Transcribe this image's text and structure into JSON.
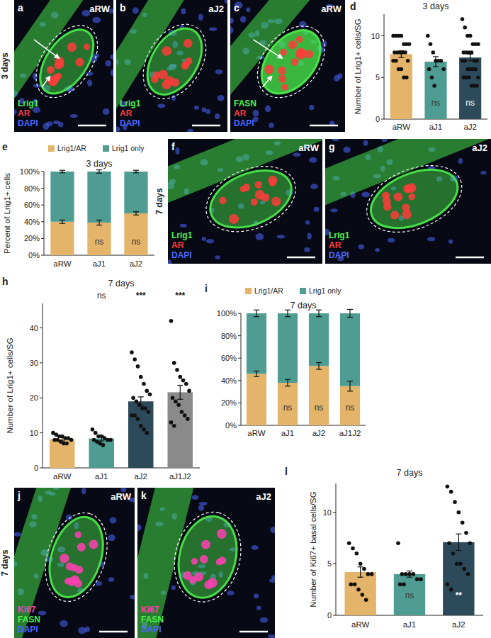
{
  "image_panels": [
    {
      "panel_label": "a",
      "condition": "aRW",
      "row_label": "3 days",
      "stains": [
        {
          "text": "Lrig1",
          "color": "#4cf04c"
        },
        {
          "text": "AR",
          "color": "#ff3b3b"
        },
        {
          "text": "DAPI",
          "color": "#4a66ff"
        }
      ]
    },
    {
      "panel_label": "b",
      "condition": "aJ2",
      "stains": [
        {
          "text": "Lrig1",
          "color": "#4cf04c"
        },
        {
          "text": "AR",
          "color": "#ff3b3b"
        },
        {
          "text": "DAPI",
          "color": "#4a66ff"
        }
      ]
    },
    {
      "panel_label": "c",
      "condition": "aRW",
      "stains": [
        {
          "text": "FASN",
          "color": "#4cf04c"
        },
        {
          "text": "AR",
          "color": "#ff3b3b"
        },
        {
          "text": "DAPI",
          "color": "#4a66ff"
        }
      ]
    },
    {
      "panel_label": "f",
      "condition": "aRW",
      "row_label": "7 days",
      "stains": [
        {
          "text": "Lrig1",
          "color": "#4cf04c"
        },
        {
          "text": "AR",
          "color": "#ff3b3b"
        },
        {
          "text": "DAPI",
          "color": "#4a66ff"
        }
      ]
    },
    {
      "panel_label": "g",
      "condition": "aJ2",
      "stains": [
        {
          "text": "Lrig1",
          "color": "#4cf04c"
        },
        {
          "text": "AR",
          "color": "#ff3b3b"
        },
        {
          "text": "DAPI",
          "color": "#4a66ff"
        }
      ]
    },
    {
      "panel_label": "j",
      "condition": "aRW",
      "row_label": "7 days",
      "stains": [
        {
          "text": "Ki67",
          "color": "#ff3fb4"
        },
        {
          "text": "FASN",
          "color": "#4cf04c"
        },
        {
          "text": "DAPI",
          "color": "#4a66ff"
        }
      ]
    },
    {
      "panel_label": "k",
      "condition": "aJ2",
      "stains": [
        {
          "text": "Ki67",
          "color": "#ff3fb4"
        },
        {
          "text": "FASN",
          "color": "#4cf04c"
        },
        {
          "text": "DAPI",
          "color": "#4a66ff"
        }
      ]
    }
  ],
  "chart_data": [
    {
      "type": "bar",
      "panel_label": "d",
      "title": "3 days",
      "ylabel": "Number of Lrig1+ cells/SG",
      "categories": [
        "aRW",
        "aJ1",
        "aJ2"
      ],
      "values": [
        7.8,
        6.9,
        7.4
      ],
      "errors": [
        0.4,
        0.6,
        0.4
      ],
      "colors": [
        "#e3b469",
        "#4f9d92",
        "#2c4a5a"
      ],
      "points": [
        [
          10,
          10,
          10,
          10,
          9,
          9,
          9,
          8,
          8,
          8,
          8,
          8,
          7,
          7,
          7,
          6,
          6,
          5,
          5
        ],
        [
          10,
          9,
          8,
          7,
          7,
          7,
          6,
          6,
          5,
          4
        ],
        [
          12,
          11,
          10,
          10,
          9,
          9,
          9,
          8,
          8,
          8,
          8,
          7,
          7,
          7,
          7,
          6,
          6,
          6,
          6,
          5,
          5,
          5,
          5,
          4,
          4,
          4
        ]
      ],
      "annotations": [
        null,
        "ns",
        "ns"
      ],
      "ylim": [
        0,
        12.6
      ],
      "yticks": [
        0,
        5,
        10
      ],
      "grid": false
    },
    {
      "type": "bar",
      "stacked": true,
      "panel_label": "e",
      "title": "3 days",
      "ylabel": "Percent of Lrig1+ cells",
      "categories": [
        "aRW",
        "aJ1",
        "aJ2"
      ],
      "series": [
        {
          "name": "Lrig1/AR",
          "color": "#e3b469",
          "values": [
            40,
            39,
            50
          ],
          "errors": [
            2,
            3,
            2
          ]
        },
        {
          "name": "Lrig1 only",
          "color": "#4f9d92",
          "values": [
            60,
            61,
            50
          ],
          "errors": [
            1.5,
            2,
            1.5
          ]
        }
      ],
      "annotations": [
        null,
        "ns",
        "ns"
      ],
      "legend": "top",
      "ylim": [
        0,
        100
      ],
      "yticks": [
        {
          "value": 0,
          "label": "0%"
        },
        {
          "value": 20,
          "label": "20%"
        },
        {
          "value": 40,
          "label": "40%"
        },
        {
          "value": 60,
          "label": "60%"
        },
        {
          "value": 80,
          "label": "80%"
        },
        {
          "value": 100,
          "label": "100%"
        }
      ],
      "grid": false
    },
    {
      "type": "bar",
      "panel_label": "h",
      "title": "7 days",
      "ylabel": "Number of Lrig1+ cells/SG",
      "categories": [
        "aRW",
        "aJ1",
        "aJ2",
        "aJ1J2"
      ],
      "values": [
        8.2,
        8.4,
        19.0,
        21.6
      ],
      "errors": [
        0.5,
        0.7,
        1.3,
        2.0
      ],
      "colors": [
        "#e3b469",
        "#4f9d92",
        "#2c4a5a",
        "#8a8a8a"
      ],
      "points": [
        [
          10,
          9.5,
          9,
          9,
          8.5,
          8.5,
          8,
          8,
          8,
          7.5,
          7,
          7
        ],
        [
          11,
          10,
          9,
          9,
          8.5,
          8,
          8,
          8,
          7.5,
          7,
          6.5
        ],
        [
          33,
          31,
          29,
          26,
          24,
          22,
          21,
          20,
          19,
          18,
          17,
          17,
          16,
          15,
          15,
          14,
          12,
          11,
          10
        ],
        [
          42,
          30,
          28,
          26,
          25,
          24,
          22,
          20,
          19,
          18,
          16,
          15,
          14,
          13,
          12
        ]
      ],
      "annotations": [
        null,
        "ns",
        "***",
        "***"
      ],
      "ylim": [
        0,
        47
      ],
      "yticks": [
        0,
        10,
        20,
        30,
        40
      ],
      "grid": false
    },
    {
      "type": "bar",
      "stacked": true,
      "panel_label": "i",
      "title": "7 days",
      "categories": [
        "aRW",
        "aJ1",
        "aJ2",
        "aJ1J2"
      ],
      "series": [
        {
          "name": "Lrig1/AR",
          "color": "#e3b469",
          "values": [
            46,
            38,
            53,
            35
          ],
          "errors": [
            2.5,
            3,
            3,
            4.5
          ]
        },
        {
          "name": "Lrig1 only",
          "color": "#4f9d92",
          "values": [
            54,
            62,
            47,
            65
          ],
          "errors": [
            3,
            3,
            3,
            3.5
          ]
        }
      ],
      "annotations": [
        null,
        "ns",
        "ns",
        "ns"
      ],
      "legend": "top",
      "ylim": [
        0,
        100
      ],
      "yticks": [
        {
          "value": 0,
          "label": "0%"
        },
        {
          "value": 20,
          "label": "20%"
        },
        {
          "value": 40,
          "label": "40%"
        },
        {
          "value": 60,
          "label": "60%"
        },
        {
          "value": 80,
          "label": "80%"
        },
        {
          "value": 100,
          "label": "100%"
        }
      ],
      "grid": false
    },
    {
      "type": "bar",
      "panel_label": "l",
      "title": "7 days",
      "ylabel": "Number of Ki67+ basal cells/SG",
      "categories": [
        "aRW",
        "aJ1",
        "aJ2"
      ],
      "values": [
        4.2,
        4.0,
        7.1
      ],
      "errors": [
        0.5,
        0.3,
        0.8
      ],
      "colors": [
        "#e3b469",
        "#4f9d92",
        "#2c4a5a"
      ],
      "points": [
        [
          7,
          6.5,
          6,
          5,
          4.5,
          4,
          4,
          3,
          3,
          2.5,
          2,
          1.5
        ],
        [
          7,
          4,
          4,
          4,
          4,
          3.5,
          3.5,
          3,
          3
        ],
        [
          12.5,
          12,
          11,
          10,
          9,
          8,
          7,
          7,
          6,
          5,
          5,
          4.5,
          4,
          3,
          2.5
        ]
      ],
      "annotations": [
        null,
        "ns",
        "**"
      ],
      "ylim": [
        0,
        12.8
      ],
      "yticks": [
        0,
        5,
        10
      ],
      "grid": false
    }
  ]
}
